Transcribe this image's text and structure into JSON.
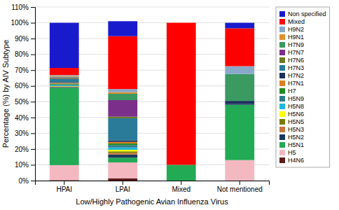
{
  "chart_data": {
    "type": "bar",
    "stacked": true,
    "xlabel": "Low/Highly Pathogenic Avian Influenza Virus",
    "ylabel": "Percentage (%) by AIV Subtype",
    "categories": [
      "HPAI",
      "LPAI",
      "Mixed",
      "Not mentioned"
    ],
    "series": [
      {
        "name": "H4N6",
        "color": "#5C1A1A",
        "values": [
          0.3,
          1.5,
          0.0,
          0.0
        ]
      },
      {
        "name": "H5",
        "color": "#F4B8C1",
        "values": [
          9.5,
          10.0,
          0.0,
          13.0
        ]
      },
      {
        "name": "H5N1",
        "color": "#22AA55",
        "values": [
          49.0,
          3.0,
          10.0,
          35.0
        ]
      },
      {
        "name": "H5N2",
        "color": "#1A3A5C",
        "values": [
          0.5,
          2.0,
          0.0,
          0.5
        ]
      },
      {
        "name": "H5N3",
        "color": "#C47A3A",
        "values": [
          0.2,
          1.0,
          0.0,
          0.0
        ]
      },
      {
        "name": "H5N5",
        "color": "#7A7A00",
        "values": [
          0.2,
          1.0,
          0.0,
          0.0
        ]
      },
      {
        "name": "H5N6",
        "color": "#FFFF00",
        "values": [
          0.2,
          1.0,
          0.0,
          0.0
        ]
      },
      {
        "name": "H5N8",
        "color": "#1CB8E0",
        "values": [
          0.5,
          1.5,
          0.0,
          0.0
        ]
      },
      {
        "name": "H5N9",
        "color": "#2E7B8A",
        "values": [
          0.5,
          1.5,
          0.0,
          0.0
        ]
      },
      {
        "name": "H7",
        "color": "#228B22",
        "values": [
          0.5,
          1.0,
          0.0,
          0.0
        ]
      },
      {
        "name": "H7N1",
        "color": "#E08020",
        "values": [
          0.5,
          1.0,
          0.0,
          0.0
        ]
      },
      {
        "name": "H7N2",
        "color": "#1A2F5A",
        "values": [
          0.5,
          1.0,
          0.0,
          2.0
        ]
      },
      {
        "name": "H7N3",
        "color": "#2A7A9A",
        "values": [
          2.0,
          14.0,
          0.0,
          0.0
        ]
      },
      {
        "name": "H7N6",
        "color": "#6A7A20",
        "values": [
          0.5,
          1.0,
          0.0,
          0.0
        ]
      },
      {
        "name": "H7N7",
        "color": "#7B2F8A",
        "values": [
          0.5,
          10.5,
          0.0,
          0.0
        ]
      },
      {
        "name": "H7N9",
        "color": "#3A9A60",
        "values": [
          0.5,
          4.0,
          0.0,
          17.0
        ]
      },
      {
        "name": "H9N1",
        "color": "#E09030",
        "values": [
          0.5,
          1.0,
          0.0,
          0.0
        ]
      },
      {
        "name": "H9N2",
        "color": "#8AA8C8",
        "values": [
          0.5,
          2.0,
          0.0,
          5.0
        ]
      },
      {
        "name": "Mixed",
        "color": "#FF0000",
        "values": [
          4.5,
          33.5,
          90.0,
          24.0
        ]
      },
      {
        "name": "Non specified",
        "color": "#1A1ACD",
        "values": [
          28.6,
          9.5,
          0.0,
          3.5
        ]
      }
    ],
    "ylim": [
      0,
      110
    ],
    "yticks": [
      {
        "value": 0,
        "label": "0%"
      },
      {
        "value": 10,
        "label": "10%"
      },
      {
        "value": 20,
        "label": "20%"
      },
      {
        "value": 30,
        "label": "30%"
      },
      {
        "value": 40,
        "label": "40%"
      },
      {
        "value": 50,
        "label": "50%"
      },
      {
        "value": 60,
        "label": "60%"
      },
      {
        "value": 70,
        "label": "70%"
      },
      {
        "value": 80,
        "label": "80%"
      },
      {
        "value": 90,
        "label": "90%"
      },
      {
        "value": 100,
        "label": "100%"
      },
      {
        "value": 110,
        "label": "110%"
      }
    ],
    "grid": true,
    "legend": "right"
  }
}
